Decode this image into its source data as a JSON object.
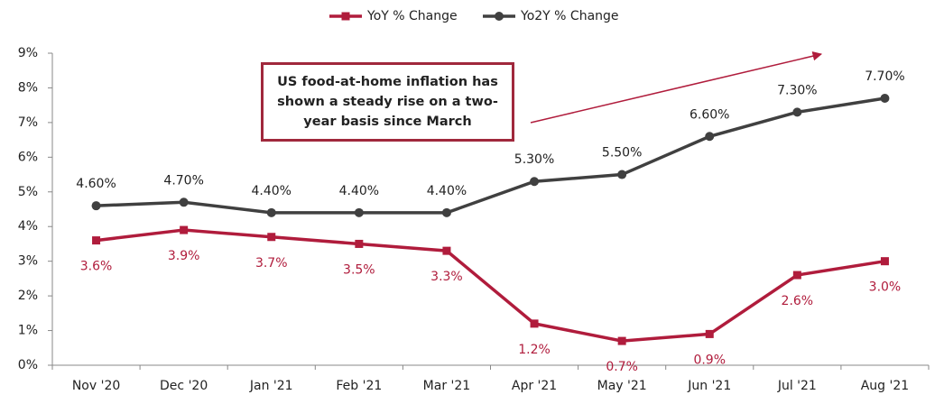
{
  "chart_data": {
    "type": "line",
    "categories": [
      "Nov '20",
      "Dec '20",
      "Jan '21",
      "Feb '21",
      "Mar '21",
      "Apr '21",
      "May '21",
      "Jun '21",
      "Jul '21",
      "Aug '21"
    ],
    "series": [
      {
        "name": "YoY % Change",
        "color": "#b01c3c",
        "marker": "square",
        "values": [
          3.6,
          3.9,
          3.7,
          3.5,
          3.3,
          1.2,
          0.7,
          0.9,
          2.6,
          3.0
        ],
        "value_labels": [
          "3.6%",
          "3.9%",
          "3.7%",
          "3.5%",
          "3.3%",
          "1.2%",
          "0.7%",
          "0.9%",
          "2.6%",
          "3.0%"
        ]
      },
      {
        "name": "Yo2Y % Change",
        "color": "#404040",
        "marker": "circle",
        "values": [
          4.6,
          4.7,
          4.4,
          4.4,
          4.4,
          5.3,
          5.5,
          6.6,
          7.3,
          7.7
        ],
        "value_labels": [
          "4.60%",
          "4.70%",
          "4.40%",
          "4.40%",
          "4.40%",
          "5.30%",
          "5.50%",
          "6.60%",
          "7.30%",
          "7.70%"
        ]
      }
    ],
    "ylim": [
      0,
      9
    ],
    "yticks": [
      {
        "value": 0,
        "label": "0%"
      },
      {
        "value": 1,
        "label": "1%"
      },
      {
        "value": 2,
        "label": "2%"
      },
      {
        "value": 3,
        "label": "3%"
      },
      {
        "value": 4,
        "label": "4%"
      },
      {
        "value": 5,
        "label": "5%"
      },
      {
        "value": 6,
        "label": "6%"
      },
      {
        "value": 7,
        "label": "7%"
      },
      {
        "value": 8,
        "label": "8%"
      },
      {
        "value": 9,
        "label": "9%"
      }
    ],
    "annotation": "US food-at-home inflation has shown a steady rise on a two-year basis since March",
    "legend": "top"
  }
}
